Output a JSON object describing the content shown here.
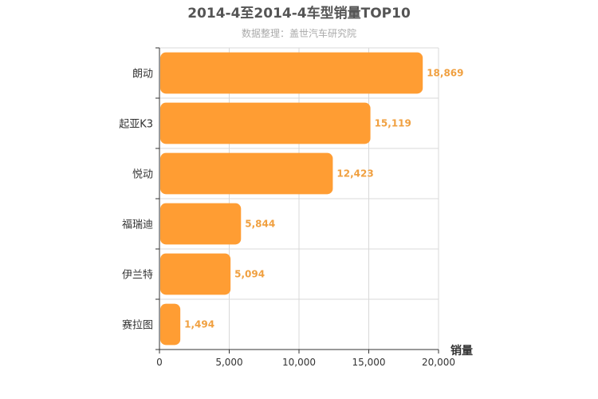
{
  "chart_data": {
    "type": "bar",
    "orientation": "horizontal",
    "title": "2014-4至2014-4车型销量TOP10",
    "subtitle": "数据整理：盖世汽车研究院",
    "xlabel": "销量",
    "ylabel": "",
    "categories": [
      "朗动",
      "起亚K3",
      "悦动",
      "福瑞迪",
      "伊兰特",
      "赛拉图"
    ],
    "values": [
      18869,
      15119,
      12423,
      5844,
      5094,
      1494
    ],
    "value_labels": [
      "18,869",
      "15,119",
      "12,423",
      "5,844",
      "5,094",
      "1,494"
    ],
    "xlim": [
      0,
      20000
    ],
    "x_ticks": [
      0,
      5000,
      10000,
      15000,
      20000
    ],
    "x_tick_labels": [
      "0",
      "5,000",
      "10,000",
      "15,000",
      "20,000"
    ],
    "grid": true,
    "legend": "none",
    "bar_color": "#ff9d33",
    "value_label_color": "#f0a040"
  }
}
